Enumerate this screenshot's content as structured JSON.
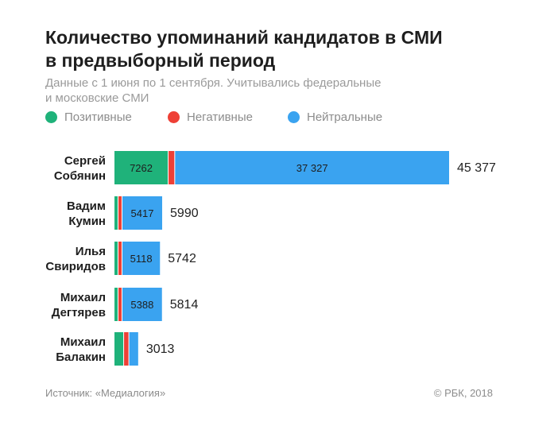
{
  "header": {
    "title_line1": "Количество упоминаний кандидатов в СМИ",
    "title_line2": "в предвыборный период",
    "subtitle_line1": "Данные с 1 июня по 1 сентября. Учитывались федеральные",
    "subtitle_line2": "и московские СМИ"
  },
  "legend": [
    {
      "label": "Позитивные",
      "color": "#1fb27a"
    },
    {
      "label": "Негативные",
      "color": "#ee4036"
    },
    {
      "label": "Нейтральные",
      "color": "#3aa3f0"
    }
  ],
  "footer": {
    "source": "Источник: «Медиалогия»",
    "copyright": "© РБК, 2018"
  },
  "chart_data": {
    "type": "bar",
    "orientation": "horizontal",
    "stacked": true,
    "categories": [
      {
        "line1": "Сергей",
        "line2": "Собянин"
      },
      {
        "line1": "Вадим",
        "line2": "Кумин"
      },
      {
        "line1": "Илья",
        "line2": "Свиридов"
      },
      {
        "line1": "Михаил",
        "line2": "Дегтярев"
      },
      {
        "line1": "Михаил",
        "line2": "Балакин"
      }
    ],
    "series": [
      {
        "name": "Позитивные",
        "color": "#1fb27a",
        "values": [
          7262,
          300,
          340,
          130,
          1200
        ]
      },
      {
        "name": "Негативные",
        "color": "#ee4036",
        "values": [
          788,
          273,
          284,
          296,
          600
        ]
      },
      {
        "name": "Нейтральные",
        "color": "#3aa3f0",
        "values": [
          37327,
          5417,
          5118,
          5388,
          1213
        ]
      }
    ],
    "segment_labels": [
      [
        "7262",
        "",
        "37 327"
      ],
      [
        "",
        "",
        "5417"
      ],
      [
        "",
        "",
        "5118"
      ],
      [
        "",
        "",
        "5388"
      ],
      [
        "",
        "",
        ""
      ]
    ],
    "totals": [
      45377,
      5990,
      5742,
      5814,
      3013
    ],
    "total_labels": [
      "45 377",
      "5990",
      "5742",
      "5814",
      "3013"
    ],
    "xlim": [
      0,
      45377
    ],
    "grid": false,
    "legend_position": "top-left"
  }
}
